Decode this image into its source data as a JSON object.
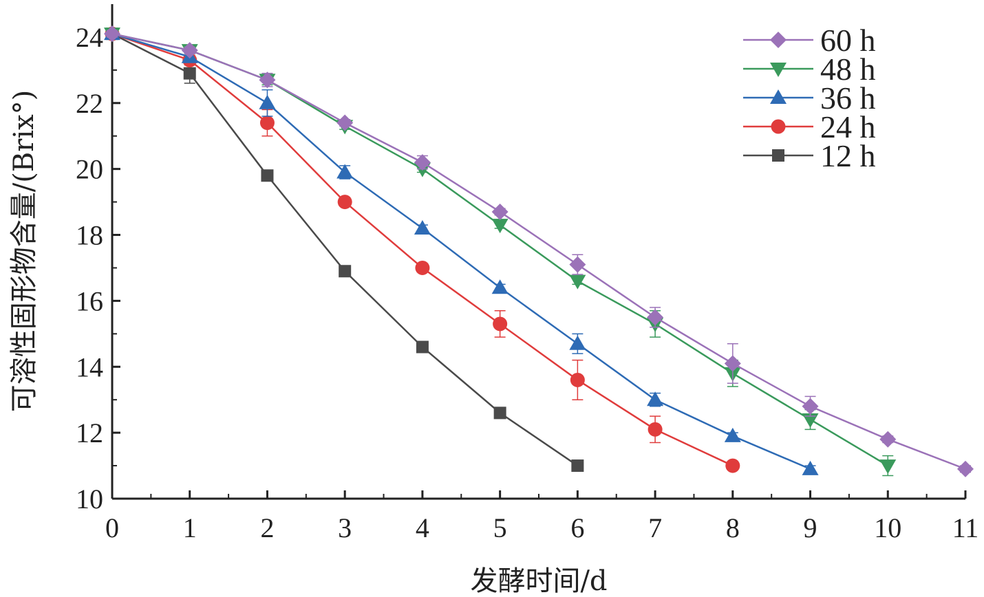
{
  "chart_data": {
    "type": "line",
    "xlabel": "发酵时间/d",
    "ylabel": "可溶性固形物含量/(Brix°)",
    "xlim": [
      0,
      11
    ],
    "ylim": [
      10,
      25
    ],
    "x_ticks": [
      0,
      1,
      2,
      3,
      4,
      5,
      6,
      7,
      8,
      9,
      10,
      11
    ],
    "y_ticks": [
      10,
      12,
      14,
      16,
      18,
      20,
      22,
      24
    ],
    "grid": false,
    "legend_position": "top-right",
    "legend_order": [
      "60 h",
      "48 h",
      "36 h",
      "24 h",
      "12 h"
    ],
    "series": [
      {
        "name": "12 h",
        "color": "#4a4a4a",
        "marker": "square",
        "x": [
          0,
          1,
          2,
          3,
          4,
          5,
          6
        ],
        "y": [
          24.1,
          22.9,
          19.8,
          16.9,
          14.6,
          12.6,
          11.0
        ],
        "err": [
          0.1,
          0.3,
          0.1,
          0.1,
          0.15,
          0.1,
          0.1
        ]
      },
      {
        "name": "24 h",
        "color": "#e03c3c",
        "marker": "circle",
        "x": [
          0,
          1,
          2,
          3,
          4,
          5,
          6,
          7,
          8
        ],
        "y": [
          24.1,
          23.3,
          21.4,
          19.0,
          17.0,
          15.3,
          13.6,
          12.1,
          11.0
        ],
        "err": [
          0.1,
          0.15,
          0.4,
          0.1,
          0.1,
          0.4,
          0.6,
          0.4,
          0.1
        ]
      },
      {
        "name": "36 h",
        "color": "#2e6bb5",
        "marker": "triangle-up",
        "x": [
          0,
          1,
          2,
          3,
          4,
          5,
          6,
          7,
          8,
          9
        ],
        "y": [
          24.1,
          23.4,
          22.0,
          19.9,
          18.2,
          16.4,
          14.7,
          13.0,
          11.9,
          10.9
        ],
        "err": [
          0.1,
          0.1,
          0.4,
          0.2,
          0.1,
          0.1,
          0.3,
          0.2,
          0.1,
          0.1
        ]
      },
      {
        "name": "48 h",
        "color": "#3a9a5c",
        "marker": "triangle-down",
        "x": [
          0,
          1,
          2,
          3,
          4,
          5,
          6,
          7,
          8,
          9,
          10
        ],
        "y": [
          24.1,
          23.6,
          22.7,
          21.3,
          20.0,
          18.3,
          16.6,
          15.3,
          13.8,
          12.4,
          11.0
        ],
        "err": [
          0.1,
          0.1,
          0.15,
          0.1,
          0.1,
          0.1,
          0.1,
          0.4,
          0.4,
          0.3,
          0.3
        ]
      },
      {
        "name": "60 h",
        "color": "#9b72b8",
        "marker": "diamond",
        "x": [
          0,
          1,
          2,
          3,
          4,
          5,
          6,
          7,
          8,
          9,
          10,
          11
        ],
        "y": [
          24.1,
          23.6,
          22.7,
          21.4,
          20.2,
          18.7,
          17.1,
          15.5,
          14.1,
          12.8,
          11.8,
          10.9
        ],
        "err": [
          0.1,
          0.1,
          0.2,
          0.1,
          0.2,
          0.1,
          0.3,
          0.3,
          0.6,
          0.3,
          0.1,
          0.1
        ]
      }
    ]
  }
}
